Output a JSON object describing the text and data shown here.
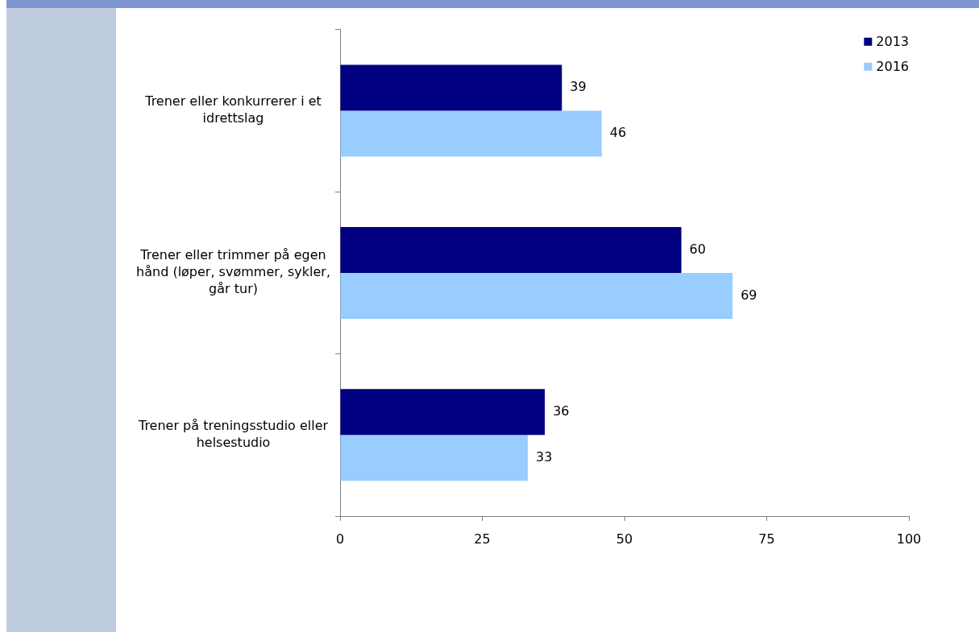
{
  "chart_data": {
    "type": "bar",
    "orientation": "horizontal",
    "categories": [
      "Trener eller konkurrerer i et idrettslag",
      "Trener eller trimmer på egen hånd (løper, svømmer, sykler, går tur)",
      "Trener på treningsstudio eller helsestudio"
    ],
    "series": [
      {
        "name": "2013",
        "color": "#000080",
        "values": [
          39,
          60,
          36
        ]
      },
      {
        "name": "2016",
        "color": "#99ccff",
        "values": [
          46,
          69,
          33
        ]
      }
    ],
    "xlim": [
      0,
      100
    ],
    "xticks": [
      0,
      25,
      50,
      75,
      100
    ],
    "grid": false,
    "legend": "top right",
    "data_labels": true
  }
}
